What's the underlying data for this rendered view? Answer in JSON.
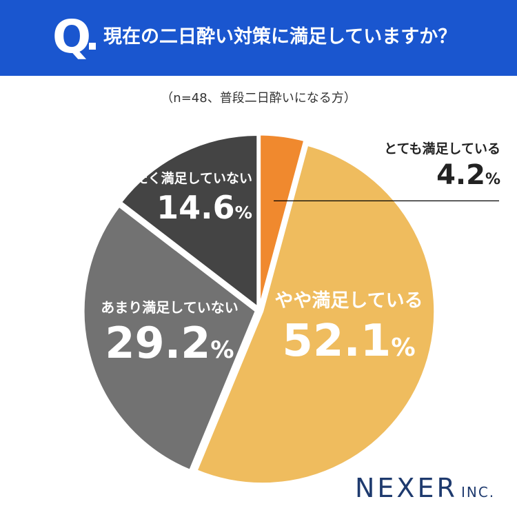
{
  "header": {
    "q_mark": "Q",
    "question": "現在の二日酔い対策に満足していますか？"
  },
  "note": "（n=48、普段二日酔いになる方）",
  "colors": {
    "header_bg": "#1a56cf",
    "very_satisfied": "#f0892e",
    "somewhat_satisfied": "#efbc5e",
    "not_very_satisfied": "#727272",
    "not_at_all_satisfied": "#444444"
  },
  "chart_data": {
    "type": "pie",
    "start_angle": "12 o'clock",
    "direction": "clockwise",
    "unit": "%",
    "slices": [
      {
        "label": "とても満足している",
        "value": 4.2,
        "value_text": "4.2",
        "color": "#f0892e"
      },
      {
        "label": "やや満足している",
        "value": 52.1,
        "value_text": "52.1",
        "color": "#efbc5e"
      },
      {
        "label": "あまり満足していない",
        "value": 29.2,
        "value_text": "29.2",
        "color": "#727272"
      },
      {
        "label": "まったく満足していない",
        "value": 14.6,
        "value_text": "14.6",
        "color": "#444444"
      }
    ]
  },
  "logo": {
    "main": "NEXER",
    "sub": "INC."
  }
}
